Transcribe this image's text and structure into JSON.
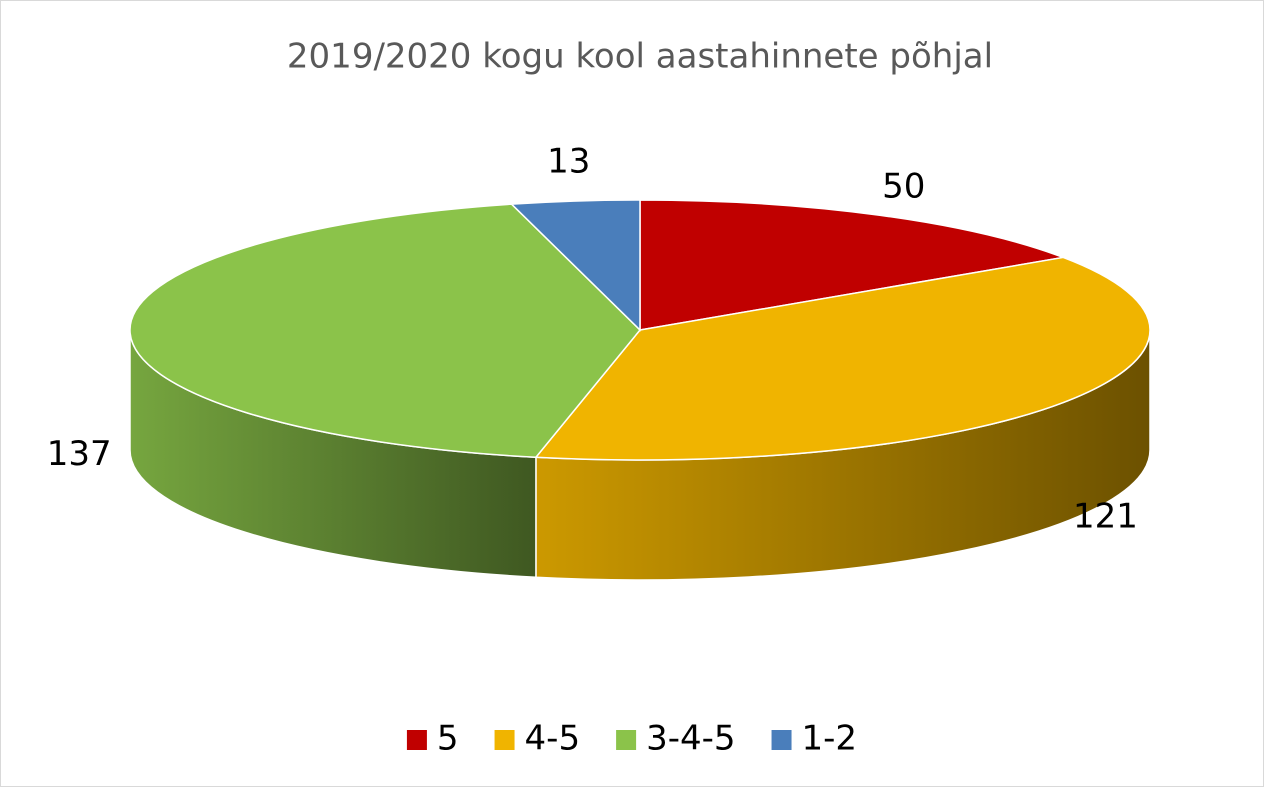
{
  "chart_data": {
    "type": "pie",
    "title": "2019/2020 kogu kool aastahinnete põhjal",
    "categories": [
      "5",
      "4-5",
      "3-4-5",
      "1-2"
    ],
    "values": [
      50,
      121,
      137,
      13
    ],
    "colors": [
      "#c00000",
      "#f0b400",
      "#8bc34a",
      "#4a7ebb"
    ],
    "legend": "bottom"
  }
}
